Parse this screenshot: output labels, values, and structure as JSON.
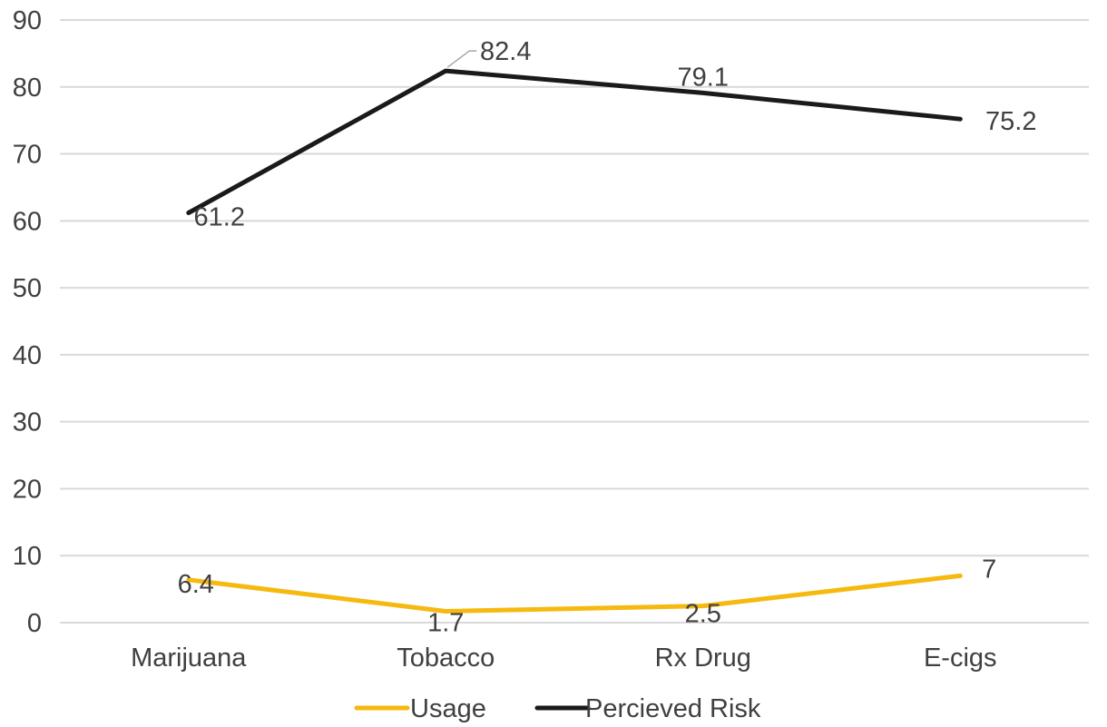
{
  "chart_data": {
    "type": "line",
    "title": "",
    "xlabel": "",
    "ylabel": "",
    "categories": [
      "Marijuana",
      "Tobacco",
      "Rx Drug",
      "E-cigs"
    ],
    "ylim": [
      0,
      90
    ],
    "yticks": [
      0,
      10,
      20,
      30,
      40,
      50,
      60,
      70,
      80,
      90
    ],
    "grid": true,
    "legend_position": "bottom",
    "series": [
      {
        "name": "Usage",
        "color": "#f5b90f",
        "values": [
          6.4,
          1.7,
          2.5,
          7
        ],
        "labels": [
          "6.4",
          "1.7",
          "2.5",
          "7"
        ]
      },
      {
        "name": "Percieved Risk",
        "color": "#1a1a1a",
        "values": [
          61.2,
          82.4,
          79.1,
          75.2
        ],
        "labels": [
          "61.2",
          "82.4",
          "79.1",
          "75.2"
        ]
      }
    ]
  }
}
